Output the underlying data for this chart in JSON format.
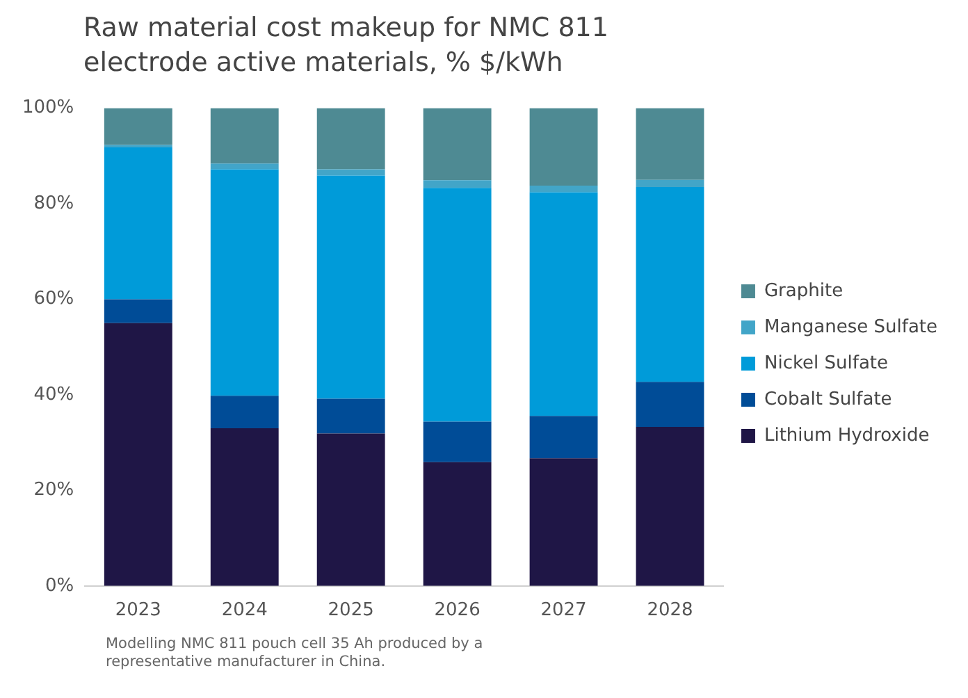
{
  "chart_data": {
    "type": "bar",
    "title": "Raw material cost makeup for NMC 811 electrode active materials, % $/kWh",
    "categories": [
      "2023",
      "2024",
      "2025",
      "2026",
      "2027",
      "2028"
    ],
    "stacked": true,
    "ylim": [
      0,
      100
    ],
    "yticks": [
      {
        "value": 0,
        "label": "0%"
      },
      {
        "value": 20,
        "label": "20%"
      },
      {
        "value": 40,
        "label": "40%"
      },
      {
        "value": 60,
        "label": "60%"
      },
      {
        "value": 80,
        "label": "80%"
      },
      {
        "value": 100,
        "label": "100%"
      }
    ],
    "grid": false,
    "legend": "right",
    "series": [
      {
        "name": "Lithium Hydroxide",
        "color": "#1f1646",
        "values": [
          55,
          33,
          31.9,
          25.9,
          26.7,
          33.3
        ]
      },
      {
        "name": "Cobalt Sulfate",
        "color": "#004c97",
        "values": [
          5,
          6.8,
          7.3,
          8.5,
          8.9,
          9.4
        ]
      },
      {
        "name": "Nickel Sulfate",
        "color": "#009bd9",
        "values": [
          31.8,
          47.4,
          46.7,
          48.9,
          46.8,
          40.8
        ]
      },
      {
        "name": "Manganese Sulfate",
        "color": "#42a5c8",
        "values": [
          0.5,
          1.2,
          1.3,
          1.6,
          1.4,
          1.5
        ]
      },
      {
        "name": "Graphite",
        "color": "#4e8a93",
        "values": [
          7.7,
          11.6,
          12.8,
          15.1,
          16.2,
          15
        ]
      }
    ],
    "annotations": [
      "Modelling NMC 811 pouch cell 35 Ah produced by a representative manufacturer in China."
    ]
  }
}
